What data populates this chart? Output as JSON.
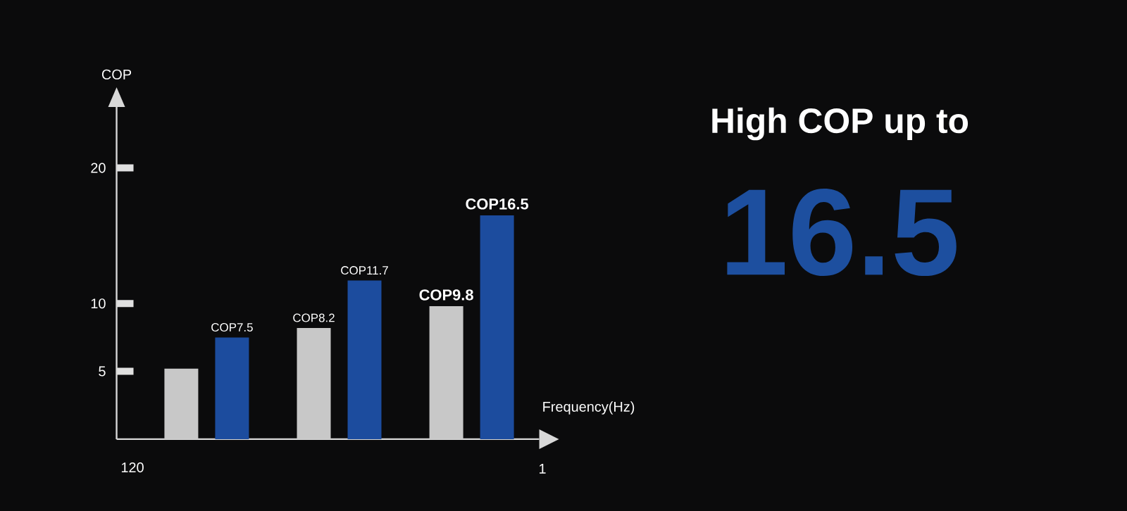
{
  "chart_data": {
    "type": "bar",
    "title": "High COP up to",
    "subtitle": "16.5",
    "xlabel": "Frequency(Hz)",
    "ylabel": "COP",
    "categories": [
      null,
      null,
      null
    ],
    "series": [
      {
        "color": "#c8c8c8",
        "values": [
          5.2,
          8.2,
          9.8
        ],
        "value_labels": [
          null,
          "COP8.2",
          "COP9.8"
        ]
      },
      {
        "color": "#1c4c9e",
        "values": [
          7.5,
          11.7,
          16.5
        ],
        "value_labels": [
          "COP7.5",
          "COP11.7",
          "COP16.5"
        ]
      }
    ],
    "ylim": [
      0,
      24.5
    ],
    "yticks": [
      5,
      10,
      20
    ],
    "grid": false,
    "legend": false,
    "annotations": [
      "120",
      "1"
    ]
  }
}
